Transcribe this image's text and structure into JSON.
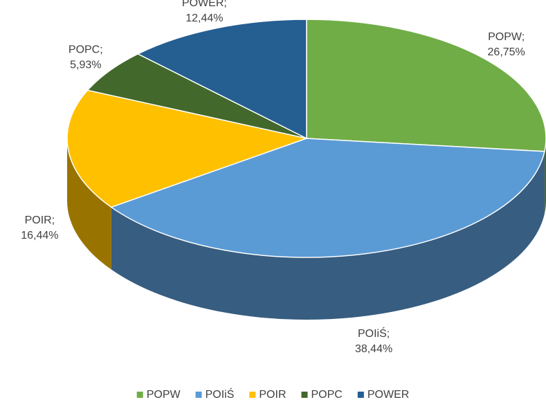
{
  "chart_data": {
    "type": "pie",
    "categories": [
      "POPW",
      "POIiŚ",
      "POIR",
      "POPC",
      "POWER"
    ],
    "values": [
      26.75,
      38.44,
      16.44,
      5.93,
      12.44
    ],
    "value_labels": [
      "26,75%",
      "38,44%",
      "16,44%",
      "5,93%",
      "12,44%"
    ],
    "data_label_separator": ";",
    "colors": [
      "#70ad47",
      "#5b9bd5",
      "#ffc000",
      "#43682b",
      "#255e91"
    ],
    "legend": "bottom"
  }
}
